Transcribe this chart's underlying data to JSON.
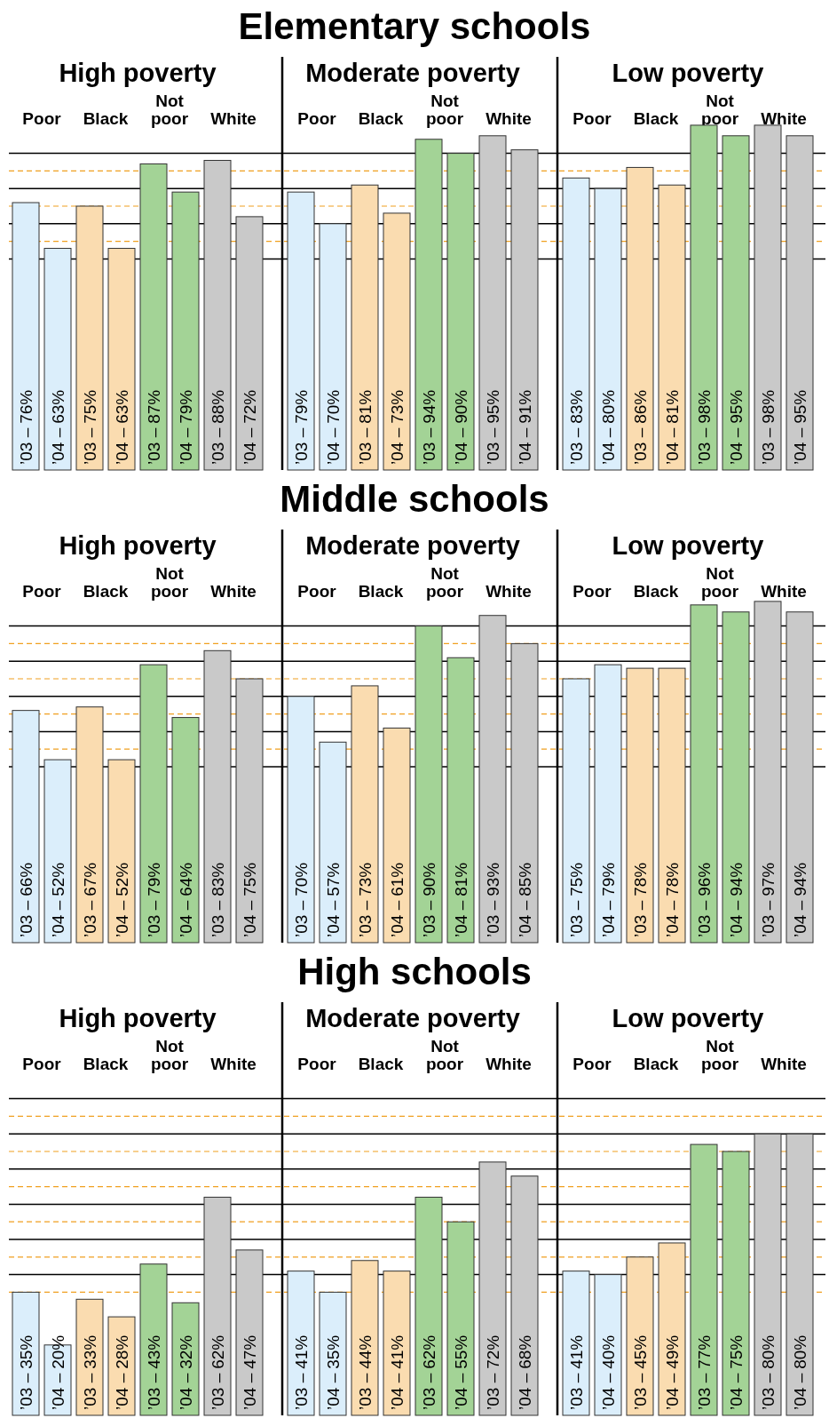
{
  "chart_data": [
    {
      "type": "bar",
      "title": "Elementary schools",
      "annotations": [
        "High poverty",
        "Moderate poverty",
        "Low poverty"
      ],
      "categories": [
        "Poor",
        "Black",
        "Not poor",
        "White",
        "Poor",
        "Black",
        "Not poor",
        "White",
        "Poor",
        "Black",
        "Not poor",
        "White"
      ],
      "series": [
        {
          "name": "’03 –",
          "colors": [
            "#dbeefb",
            "#fadcb0",
            "#a3d396",
            "#c9c9c9",
            "#dbeefb",
            "#fadcb0",
            "#a3d396",
            "#c9c9c9",
            "#dbeefb",
            "#fadcb0",
            "#a3d396",
            "#c9c9c9"
          ],
          "values": [
            76,
            75,
            87,
            88,
            79,
            81,
            94,
            95,
            83,
            86,
            98,
            98
          ],
          "value_labels": [
            "76%",
            "75%",
            "87%",
            "88%",
            "79%",
            "81%",
            "94%",
            "95%",
            "83%",
            "86%",
            "98%",
            "98%"
          ]
        },
        {
          "name": "’04 –",
          "colors": [
            "#dbeefb",
            "#fadcb0",
            "#a3d396",
            "#c9c9c9",
            "#dbeefb",
            "#fadcb0",
            "#a3d396",
            "#c9c9c9",
            "#dbeefb",
            "#fadcb0",
            "#a3d396",
            "#c9c9c9"
          ],
          "values": [
            63,
            63,
            79,
            72,
            70,
            73,
            90,
            91,
            80,
            81,
            95,
            95
          ],
          "value_labels": [
            "63%",
            "63%",
            "79%",
            "72%",
            "70%",
            "73%",
            "90%",
            "91%",
            "80%",
            "81%",
            "95%",
            "95%"
          ]
        }
      ],
      "ref_lines": [
        {
          "axis": "y",
          "value": 90,
          "color": "#000000",
          "line_style": "solid"
        },
        {
          "axis": "y",
          "value": 85,
          "color": "#f0a020",
          "line_style": "dashed"
        },
        {
          "axis": "y",
          "value": 80,
          "color": "#000000",
          "line_style": "solid"
        },
        {
          "axis": "y",
          "value": 75,
          "color": "#f0a020",
          "line_style": "dashed"
        },
        {
          "axis": "y",
          "value": 70,
          "color": "#000000",
          "line_style": "solid"
        },
        {
          "axis": "y",
          "value": 65,
          "color": "#f0a020",
          "line_style": "dashed"
        },
        {
          "axis": "y",
          "value": 60,
          "color": "#000000",
          "line_style": "solid"
        }
      ]
    },
    {
      "type": "bar",
      "title": "Middle schools",
      "annotations": [
        "High poverty",
        "Moderate poverty",
        "Low poverty"
      ],
      "categories": [
        "Poor",
        "Black",
        "Not poor",
        "White",
        "Poor",
        "Black",
        "Not poor",
        "White",
        "Poor",
        "Black",
        "Not poor",
        "White"
      ],
      "series": [
        {
          "name": "’03 –",
          "colors": [
            "#dbeefb",
            "#fadcb0",
            "#a3d396",
            "#c9c9c9",
            "#dbeefb",
            "#fadcb0",
            "#a3d396",
            "#c9c9c9",
            "#dbeefb",
            "#fadcb0",
            "#a3d396",
            "#c9c9c9"
          ],
          "values": [
            66,
            67,
            79,
            83,
            70,
            73,
            90,
            93,
            75,
            78,
            96,
            97
          ],
          "value_labels": [
            "66%",
            "67%",
            "79%",
            "83%",
            "70%",
            "73%",
            "90%",
            "93%",
            "75%",
            "78%",
            "96%",
            "97%"
          ]
        },
        {
          "name": "’04 –",
          "colors": [
            "#dbeefb",
            "#fadcb0",
            "#a3d396",
            "#c9c9c9",
            "#dbeefb",
            "#fadcb0",
            "#a3d396",
            "#c9c9c9",
            "#dbeefb",
            "#fadcb0",
            "#a3d396",
            "#c9c9c9"
          ],
          "values": [
            52,
            52,
            64,
            75,
            57,
            61,
            81,
            85,
            79,
            78,
            94,
            94
          ],
          "value_labels": [
            "52%",
            "52%",
            "64%",
            "75%",
            "57%",
            "61%",
            "81%",
            "85%",
            "79%",
            "78%",
            "94%",
            "94%"
          ]
        }
      ],
      "ref_lines": [
        {
          "axis": "y",
          "value": 90,
          "color": "#000000",
          "line_style": "solid"
        },
        {
          "axis": "y",
          "value": 85,
          "color": "#f0a020",
          "line_style": "dashed"
        },
        {
          "axis": "y",
          "value": 80,
          "color": "#000000",
          "line_style": "solid"
        },
        {
          "axis": "y",
          "value": 75,
          "color": "#f0a020",
          "line_style": "dashed"
        },
        {
          "axis": "y",
          "value": 70,
          "color": "#000000",
          "line_style": "solid"
        },
        {
          "axis": "y",
          "value": 65,
          "color": "#f0a020",
          "line_style": "dashed"
        },
        {
          "axis": "y",
          "value": 60,
          "color": "#000000",
          "line_style": "solid"
        },
        {
          "axis": "y",
          "value": 55,
          "color": "#f0a020",
          "line_style": "dashed"
        },
        {
          "axis": "y",
          "value": 50,
          "color": "#000000",
          "line_style": "solid"
        }
      ]
    },
    {
      "type": "bar",
      "title": "High schools",
      "annotations": [
        "High poverty",
        "Moderate poverty",
        "Low poverty"
      ],
      "categories": [
        "Poor",
        "Black",
        "Not poor",
        "White",
        "Poor",
        "Black",
        "Not poor",
        "White",
        "Poor",
        "Black",
        "Not poor",
        "White"
      ],
      "series": [
        {
          "name": "’03 –",
          "colors": [
            "#dbeefb",
            "#fadcb0",
            "#a3d396",
            "#c9c9c9",
            "#dbeefb",
            "#fadcb0",
            "#a3d396",
            "#c9c9c9",
            "#dbeefb",
            "#fadcb0",
            "#a3d396",
            "#c9c9c9"
          ],
          "values": [
            35,
            33,
            43,
            62,
            41,
            44,
            62,
            72,
            41,
            45,
            77,
            80
          ],
          "value_labels": [
            "35%",
            "33%",
            "43%",
            "62%",
            "41%",
            "44%",
            "62%",
            "72%",
            "41%",
            "45%",
            "77%",
            "80%"
          ]
        },
        {
          "name": "’04 –",
          "colors": [
            "#dbeefb",
            "#fadcb0",
            "#a3d396",
            "#c9c9c9",
            "#dbeefb",
            "#fadcb0",
            "#a3d396",
            "#c9c9c9",
            "#dbeefb",
            "#fadcb0",
            "#a3d396",
            "#c9c9c9"
          ],
          "values": [
            20,
            28,
            32,
            47,
            35,
            41,
            55,
            68,
            40,
            49,
            75,
            80
          ],
          "value_labels": [
            "20%",
            "28%",
            "32%",
            "47%",
            "35%",
            "41%",
            "55%",
            "68%",
            "40%",
            "49%",
            "75%",
            "80%"
          ]
        }
      ],
      "ref_lines": [
        {
          "axis": "y",
          "value": 90,
          "color": "#000000",
          "line_style": "solid"
        },
        {
          "axis": "y",
          "value": 85,
          "color": "#f0a020",
          "line_style": "dashed"
        },
        {
          "axis": "y",
          "value": 80,
          "color": "#000000",
          "line_style": "solid"
        },
        {
          "axis": "y",
          "value": 75,
          "color": "#f0a020",
          "line_style": "dashed"
        },
        {
          "axis": "y",
          "value": 70,
          "color": "#000000",
          "line_style": "solid"
        },
        {
          "axis": "y",
          "value": 65,
          "color": "#f0a020",
          "line_style": "dashed"
        },
        {
          "axis": "y",
          "value": 60,
          "color": "#000000",
          "line_style": "solid"
        },
        {
          "axis": "y",
          "value": 55,
          "color": "#f0a020",
          "line_style": "dashed"
        },
        {
          "axis": "y",
          "value": 50,
          "color": "#000000",
          "line_style": "solid"
        },
        {
          "axis": "y",
          "value": 45,
          "color": "#f0a020",
          "line_style": "dashed"
        },
        {
          "axis": "y",
          "value": 40,
          "color": "#000000",
          "line_style": "solid"
        },
        {
          "axis": "y",
          "value": 35,
          "color": "#f0a020",
          "line_style": "dashed"
        }
      ]
    }
  ]
}
